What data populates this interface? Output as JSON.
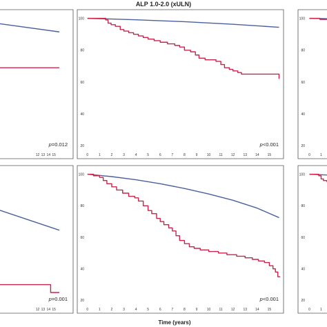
{
  "title": "ALP 1.0-2.0 (xULN)",
  "xlabel": "Time (years)",
  "colors": {
    "reference": "#4a5f9e",
    "patients": "#c8244b"
  },
  "chart_data": [
    {
      "type": "line",
      "panel": "top-left (partially visible)",
      "x_ticks": [
        "12",
        "13",
        "14",
        "15"
      ],
      "y_ticks": [],
      "xlim": [
        0,
        16
      ],
      "ylim": [
        18,
        102
      ],
      "p_value": {
        "prefix": "p",
        "text": "=0.012"
      },
      "series": [
        {
          "role": "reference",
          "x": [
            0,
            16
          ],
          "y": [
            99,
            91.5
          ]
        },
        {
          "role": "patients",
          "x": [
            0,
            16
          ],
          "y": [
            69,
            69
          ]
        }
      ]
    },
    {
      "type": "line",
      "panel": "top-middle",
      "x_ticks": [
        "0",
        "1",
        "2",
        "3",
        "4",
        "5",
        "6",
        "7",
        "8",
        "9",
        "10",
        "11",
        "12",
        "13",
        "14",
        "15"
      ],
      "y_ticks": [
        "100",
        "80",
        "60",
        "40",
        "20"
      ],
      "xlim": [
        -0.5,
        16
      ],
      "ylim": [
        18,
        102
      ],
      "p_value": {
        "prefix": "p",
        "text": "<0.001"
      },
      "series": [
        {
          "role": "reference",
          "x": [
            0,
            2,
            4,
            6,
            8,
            10,
            12,
            14,
            15.8
          ],
          "y": [
            100,
            99.6,
            99.1,
            98.5,
            97.9,
            97.1,
            96.3,
            95.3,
            94.4
          ]
        },
        {
          "role": "patients",
          "steps": [
            [
              0,
              100
            ],
            [
              1.5,
              99
            ],
            [
              1.7,
              97
            ],
            [
              1.95,
              96
            ],
            [
              2.3,
              95
            ],
            [
              2.7,
              93
            ],
            [
              3.0,
              92
            ],
            [
              3.4,
              91
            ],
            [
              3.8,
              90
            ],
            [
              4.2,
              89
            ],
            [
              4.6,
              88
            ],
            [
              5.0,
              87
            ],
            [
              5.5,
              86
            ],
            [
              6.0,
              85
            ],
            [
              6.6,
              84
            ],
            [
              7.2,
              83
            ],
            [
              7.6,
              82
            ],
            [
              8.0,
              80
            ],
            [
              8.5,
              79
            ],
            [
              8.9,
              77
            ],
            [
              9.2,
              75
            ],
            [
              9.7,
              74
            ],
            [
              10.6,
              73
            ],
            [
              11.0,
              71
            ],
            [
              11.3,
              69
            ],
            [
              11.7,
              68
            ],
            [
              12.0,
              67
            ],
            [
              12.4,
              66
            ],
            [
              12.7,
              65
            ],
            [
              15.7,
              65
            ],
            [
              15.8,
              62
            ]
          ]
        }
      ]
    },
    {
      "type": "line",
      "panel": "top-right (partially visible)",
      "x_ticks": [
        "0",
        "1"
      ],
      "y_ticks": [
        "100",
        "80",
        "60",
        "40",
        "20"
      ],
      "xlim": [
        -0.5,
        16
      ],
      "ylim": [
        18,
        102
      ],
      "series": [
        {
          "role": "reference",
          "x": [
            0,
            1.5
          ],
          "y": [
            100,
            99.8
          ]
        },
        {
          "role": "patients",
          "steps": [
            [
              0,
              100
            ],
            [
              0.9,
              99.3
            ],
            [
              1.5,
              99.3
            ]
          ]
        }
      ]
    },
    {
      "type": "line",
      "panel": "bottom-left (partially visible)",
      "x_ticks": [
        "12",
        "13",
        "14",
        "15"
      ],
      "y_ticks": [],
      "xlim": [
        0,
        16
      ],
      "ylim": [
        18,
        102
      ],
      "p_value": {
        "prefix": "p",
        "text": "=0.001"
      },
      "series": [
        {
          "role": "reference",
          "x": [
            0,
            16
          ],
          "y": [
            83,
            64.5
          ]
        },
        {
          "role": "patients",
          "steps": [
            [
              0,
              30
            ],
            [
              14.4,
              30
            ],
            [
              14.4,
              25
            ],
            [
              16,
              25
            ]
          ]
        }
      ]
    },
    {
      "type": "line",
      "panel": "bottom-middle",
      "x_ticks": [
        "0",
        "1",
        "2",
        "3",
        "4",
        "5",
        "6",
        "7",
        "8",
        "9",
        "10",
        "11",
        "12",
        "13",
        "14",
        "15"
      ],
      "y_ticks": [
        "100",
        "80",
        "60",
        "40",
        "20"
      ],
      "xlim": [
        -0.5,
        16
      ],
      "ylim": [
        18,
        102
      ],
      "p_value": {
        "prefix": "p",
        "text": "<0.001"
      },
      "series": [
        {
          "role": "reference",
          "x": [
            0,
            2,
            4,
            6,
            8,
            10,
            12,
            14,
            15.8
          ],
          "y": [
            100,
            98.5,
            96.5,
            94,
            91,
            87.5,
            83.5,
            78.5,
            72.5
          ]
        },
        {
          "role": "patients",
          "steps": [
            [
              0,
              100
            ],
            [
              0.5,
              99
            ],
            [
              1.0,
              98
            ],
            [
              1.3,
              96
            ],
            [
              1.6,
              94
            ],
            [
              2.0,
              92
            ],
            [
              2.4,
              90
            ],
            [
              2.9,
              88
            ],
            [
              3.4,
              86
            ],
            [
              3.9,
              85
            ],
            [
              4.2,
              83
            ],
            [
              4.6,
              80
            ],
            [
              5.0,
              77
            ],
            [
              5.3,
              75
            ],
            [
              5.7,
              72
            ],
            [
              6.0,
              70
            ],
            [
              6.3,
              68
            ],
            [
              6.7,
              66
            ],
            [
              7.0,
              64
            ],
            [
              7.3,
              61
            ],
            [
              7.6,
              58
            ],
            [
              8.0,
              56
            ],
            [
              8.4,
              54
            ],
            [
              8.8,
              53
            ],
            [
              9.3,
              52
            ],
            [
              10.0,
              51
            ],
            [
              10.8,
              50
            ],
            [
              11.5,
              49
            ],
            [
              12.3,
              48
            ],
            [
              13.0,
              47
            ],
            [
              13.6,
              46
            ],
            [
              14.1,
              45
            ],
            [
              14.6,
              44
            ],
            [
              15.0,
              42
            ],
            [
              15.3,
              40
            ],
            [
              15.5,
              38
            ],
            [
              15.7,
              35
            ],
            [
              15.9,
              35
            ]
          ]
        }
      ]
    },
    {
      "type": "line",
      "panel": "bottom-right (partially visible)",
      "x_ticks": [
        "0",
        "1"
      ],
      "y_ticks": [
        "100",
        "80",
        "60",
        "40",
        "20"
      ],
      "xlim": [
        -0.5,
        16
      ],
      "ylim": [
        18,
        102
      ],
      "series": [
        {
          "role": "reference",
          "x": [
            0,
            1.5
          ],
          "y": [
            100,
            99.5
          ]
        },
        {
          "role": "patients",
          "steps": [
            [
              0,
              100
            ],
            [
              0.8,
              99
            ],
            [
              1.0,
              97
            ],
            [
              1.2,
              96
            ],
            [
              1.5,
              95
            ]
          ]
        }
      ]
    }
  ]
}
